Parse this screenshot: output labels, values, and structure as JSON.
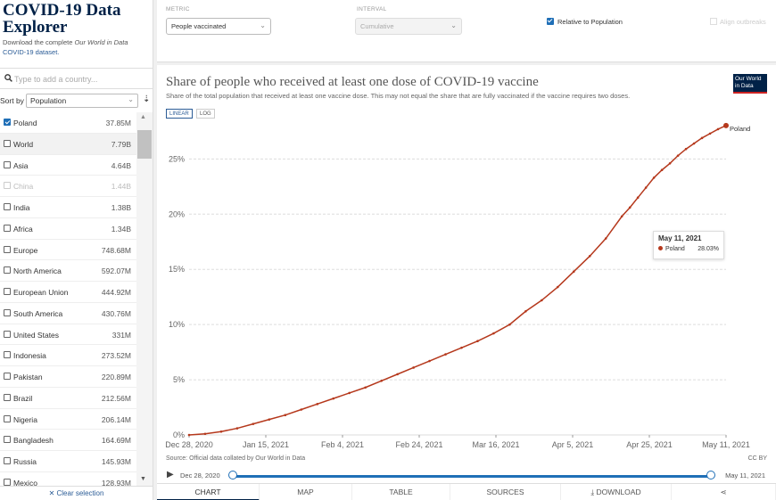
{
  "app": {
    "title": "COVID-19 Data Explorer",
    "subtitle_prefix": "Download the complete ",
    "subtitle_italic": "Our World in Data",
    "subtitle_link": "COVID-19 dataset.",
    "brand_color": "#002147"
  },
  "search": {
    "placeholder": "Type to add a country..."
  },
  "sort": {
    "label": "Sort by",
    "value": "Population"
  },
  "countries": [
    {
      "name": "Poland",
      "value": "37.85M",
      "checked": true
    },
    {
      "name": "World",
      "value": "7.79B"
    },
    {
      "name": "Asia",
      "value": "4.64B"
    },
    {
      "name": "China",
      "value": "1.44B",
      "disabled": true
    },
    {
      "name": "India",
      "value": "1.38B"
    },
    {
      "name": "Africa",
      "value": "1.34B"
    },
    {
      "name": "Europe",
      "value": "748.68M"
    },
    {
      "name": "North America",
      "value": "592.07M"
    },
    {
      "name": "European Union",
      "value": "444.92M"
    },
    {
      "name": "South America",
      "value": "430.76M"
    },
    {
      "name": "United States",
      "value": "331M"
    },
    {
      "name": "Indonesia",
      "value": "273.52M"
    },
    {
      "name": "Pakistan",
      "value": "220.89M"
    },
    {
      "name": "Brazil",
      "value": "212.56M"
    },
    {
      "name": "Nigeria",
      "value": "206.14M"
    },
    {
      "name": "Bangladesh",
      "value": "164.69M"
    },
    {
      "name": "Russia",
      "value": "145.93M"
    },
    {
      "name": "Mexico",
      "value": "128.93M"
    }
  ],
  "clear_selection": "✕ Clear selection",
  "controls": {
    "metric_label": "METRIC",
    "metric_value": "People vaccinated",
    "interval_label": "INTERVAL",
    "interval_value": "Cumulative",
    "relative_label": "Relative to Population",
    "align_label": "Align outbreaks"
  },
  "chart": {
    "title": "Share of people who received at least one dose of COVID-19 vaccine",
    "subtitle": "Share of the total population that received at least one vaccine dose. This may not equal the share that are fully vaccinated if the vaccine requires two doses.",
    "logo": "Our World in Data",
    "scale_linear": "LINEAR",
    "scale_log": "LOG",
    "source": "Source: Official data collated by Our World in Data",
    "license": "CC BY",
    "series_color": "#b5381c"
  },
  "tooltip": {
    "date": "May 11, 2021",
    "entity": "Poland",
    "value": "28.03%"
  },
  "timeline": {
    "start": "Dec 28, 2020",
    "end": "May 11, 2021"
  },
  "tabs": [
    "CHART",
    "MAP",
    "TABLE",
    "SOURCES",
    "DOWNLOAD"
  ],
  "chart_data": {
    "type": "line",
    "title": "Share of people who received at least one dose of COVID-19 vaccine",
    "xlabel": "",
    "ylabel": "",
    "x_ticks": [
      "Dec 28, 2020",
      "Jan 15, 2021",
      "Feb 4, 2021",
      "Feb 24, 2021",
      "Mar 16, 2021",
      "Apr 5, 2021",
      "Apr 25, 2021",
      "May 11, 2021"
    ],
    "y_ticks": [
      "0%",
      "5%",
      "10%",
      "15%",
      "20%",
      "25%"
    ],
    "ylim": [
      0,
      28.5
    ],
    "x_range_days": [
      0,
      134
    ],
    "series": [
      {
        "name": "Poland",
        "end_label": "Poland",
        "x_days": [
          0,
          4,
          8,
          12,
          16,
          20,
          24,
          28,
          32,
          36,
          40,
          44,
          48,
          52,
          56,
          60,
          64,
          68,
          72,
          76,
          80,
          84,
          88,
          92,
          96,
          100,
          104,
          108,
          110,
          112,
          114,
          116,
          118,
          120,
          122,
          124,
          126,
          128,
          130,
          132,
          134
        ],
        "values": [
          0.0,
          0.1,
          0.3,
          0.6,
          1.0,
          1.4,
          1.8,
          2.3,
          2.8,
          3.3,
          3.8,
          4.3,
          4.9,
          5.5,
          6.1,
          6.7,
          7.3,
          7.9,
          8.5,
          9.2,
          10.0,
          11.2,
          12.2,
          13.4,
          14.8,
          16.2,
          17.8,
          19.8,
          20.6,
          21.5,
          22.4,
          23.3,
          24.0,
          24.6,
          25.3,
          25.9,
          26.4,
          26.9,
          27.3,
          27.7,
          28.03
        ]
      }
    ]
  }
}
